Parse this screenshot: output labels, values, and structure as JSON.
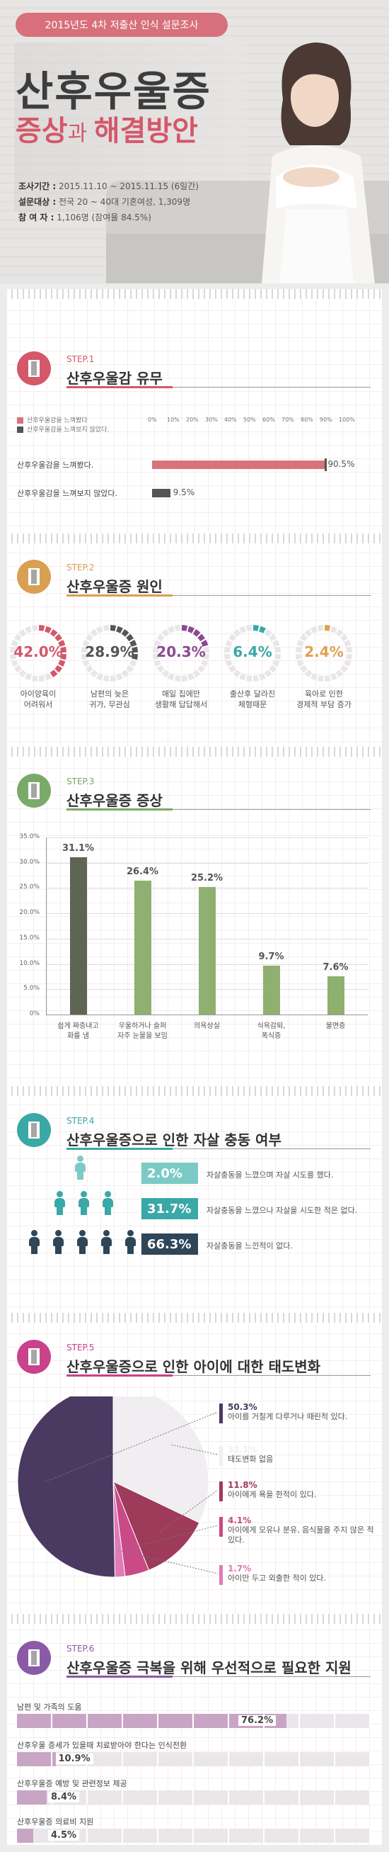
{
  "header": {
    "survey_badge": "2015년도 4차 저출산 인식 설문조사",
    "title": "산후우울증",
    "subtitle_a": "증상",
    "subtitle_b": "과 ",
    "subtitle_c": "해결방안",
    "meta": [
      {
        "label": "조사기간 :",
        "value": " 2015.11.10 ~ 2015.11.15 (6일간)"
      },
      {
        "label": "설문대상 :",
        "value": " 전국 20 ~ 40대 기혼여성,  1,309명"
      },
      {
        "label": "참 여 자 :",
        "value": " 1,106명 (참여율 84.5%)"
      }
    ]
  },
  "colors": {
    "step1": "#d4576a",
    "step2": "#d9a053",
    "step3": "#7aaa6a",
    "step4": "#3aa8a6",
    "step5": "#c9428b",
    "step6": "#8a5aa6",
    "bar_red": "#d9737a",
    "bar_dark": "#555555",
    "olive_dark": "#5f6555",
    "olive": "#8fb070",
    "teal": "#5cbdbc",
    "navy": "#2e4657"
  },
  "step1": {
    "label": "STEP.1",
    "title": "산후우울감 유무",
    "legend": [
      "산후우울감을 느껴봤다",
      "산후우울감을 느껴보지 않았다."
    ],
    "axis": [
      "0%",
      "10%",
      "20%",
      "30%",
      "40%",
      "50%",
      "60%",
      "70%",
      "80%",
      "90%",
      "100%"
    ],
    "rows": [
      {
        "label": "산후우울감을 느껴봤다.",
        "value": 90.5,
        "display": "90.5%"
      },
      {
        "label": "산후우울감을 느껴보지 않았다.",
        "value": 9.5,
        "display": "9.5%"
      }
    ]
  },
  "step2": {
    "label": "STEP.2",
    "title": "산후우울증 원인",
    "items": [
      {
        "value": 42.0,
        "display": "42.0%",
        "line1": "아이양육이",
        "line2": "어려워서",
        "color": "#d4576a"
      },
      {
        "value": 28.9,
        "display": "28.9%",
        "line1": "남편의 늦은",
        "line2": "귀가, 무관심",
        "color": "#555555"
      },
      {
        "value": 20.3,
        "display": "20.3%",
        "line1": "매일 집에만",
        "line2": "생활해 답답해서",
        "color": "#8a4a8f"
      },
      {
        "value": 6.4,
        "display": "6.4%",
        "line1": "출산후 달라진",
        "line2": "체형때문",
        "color": "#3aa8a6"
      },
      {
        "value": 2.4,
        "display": "2.4%",
        "line1": "육아로 인한",
        "line2": "경제적 부담 증가",
        "color": "#e0a050"
      }
    ]
  },
  "step3": {
    "label": "STEP.3",
    "title": "산후우울증 증상",
    "chart_data": {
      "type": "bar",
      "categories": [
        "쉽게 짜증내고 화를 냄",
        "우울하거나 슬퍼 자주 눈물을 보임",
        "의욕상실",
        "식욕감퇴, 폭식증",
        "불면증"
      ],
      "values": [
        31.1,
        26.4,
        25.2,
        9.7,
        7.6
      ],
      "ylim": [
        0,
        35
      ],
      "yticks": [
        "35.0%",
        "30.0%",
        "25.0%",
        "20.0%",
        "15.0%",
        "10.0%",
        "5.0%",
        "0%"
      ]
    },
    "cats": [
      {
        "l1": "쉽게 짜증내고",
        "l2": "화를 냄",
        "display": "31.1%"
      },
      {
        "l1": "우울하거나 슬퍼",
        "l2": "자주 눈물을 보임",
        "display": "26.4%"
      },
      {
        "l1": "의욕상실",
        "l2": "",
        "display": "25.2%"
      },
      {
        "l1": "식욕감퇴,",
        "l2": "폭식증",
        "display": "9.7%"
      },
      {
        "l1": "불면증",
        "l2": "",
        "display": "7.6%"
      }
    ]
  },
  "step4": {
    "label": "STEP.4",
    "title": "산후우울증으로 인한 자살 충동 여부",
    "rows": [
      {
        "value": 2.0,
        "display": "2.0%",
        "desc": "자살충동을 느꼈으며 자살 시도를 했다.",
        "color": "#7ccac6"
      },
      {
        "value": 31.7,
        "display": "31.7%",
        "desc": "자살충동을 느꼈으나 자살을 시도한 적은 없다.",
        "color": "#3aa8a6"
      },
      {
        "value": 66.3,
        "display": "66.3%",
        "desc": "자살충동을 느낀적이 없다.",
        "color": "#2e4657"
      }
    ]
  },
  "step5": {
    "label": "STEP.5",
    "title": "산후우울증으로 인한 아이에 대한 태도변화",
    "chart_data": {
      "type": "pie",
      "slices": [
        {
          "value": 50.3,
          "display": "50.3%",
          "desc": "아이를 거칠게 다루거나 때린적 있다.",
          "color": "#4a3a62"
        },
        {
          "value": 32.1,
          "display": "32.1%",
          "desc": "태도변화 없음",
          "color": "#f0eef0"
        },
        {
          "value": 11.8,
          "display": "11.8%",
          "desc": "아이에게 욕을 한적이 있다.",
          "color": "#9e3a5a"
        },
        {
          "value": 4.1,
          "display": "4.1%",
          "desc": "아이에게 모유나 분유, 음식물을 주지 않은 적 있다.",
          "color": "#c94a86"
        },
        {
          "value": 1.7,
          "display": "1.7%",
          "desc": "아이만 두고 외출한 적이 있다.",
          "color": "#e07ab8"
        }
      ]
    }
  },
  "step6": {
    "label": "STEP.6",
    "title": "산후우울증 극복을 위해 우선적으로 필요한 지원",
    "rows": [
      {
        "label": "남편 및 가족의 도움",
        "value": 76.2,
        "display": "76.2%"
      },
      {
        "label": "산후우울 증세가 있을때 치료받아야 한다는 인식전환",
        "value": 10.9,
        "display": "10.9%"
      },
      {
        "label": "산후우울증 예방 및 관련정보 제공",
        "value": 8.4,
        "display": "8.4%"
      },
      {
        "label": "산후우울증 의료비 지원",
        "value": 4.5,
        "display": "4.5%"
      }
    ]
  }
}
